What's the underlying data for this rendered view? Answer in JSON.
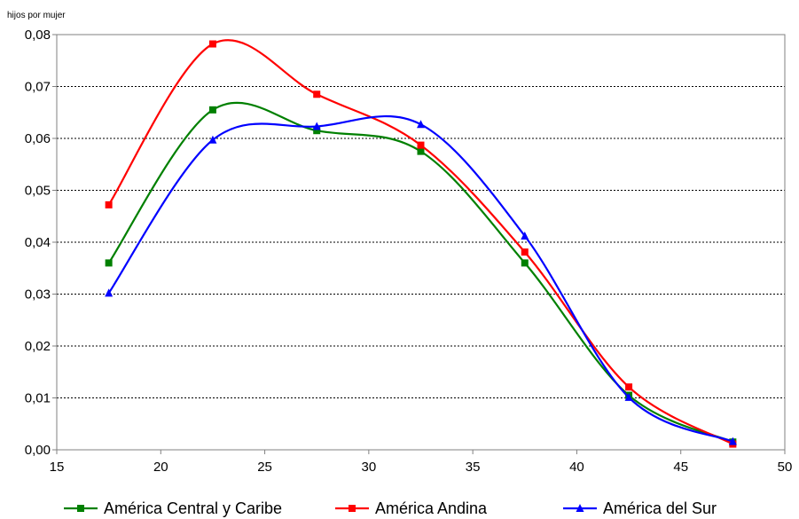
{
  "chart_data": {
    "type": "line",
    "title": "",
    "xlabel": "",
    "ylabel": "hijos por mujer",
    "xlim": [
      15,
      50
    ],
    "ylim": [
      0,
      0.08
    ],
    "x_ticks": [
      15,
      20,
      25,
      30,
      35,
      40,
      45,
      50
    ],
    "x_tick_labels": [
      "15",
      "20",
      "25",
      "30",
      "35",
      "40",
      "45",
      "50"
    ],
    "y_ticks": [
      0,
      0.01,
      0.02,
      0.03,
      0.04,
      0.05,
      0.06,
      0.07,
      0.08
    ],
    "y_tick_labels": [
      "0,00",
      "0,01",
      "0,02",
      "0,03",
      "0,04",
      "0,05",
      "0,06",
      "0,07",
      "0,08"
    ],
    "grid": true,
    "smooth": true,
    "legend_position": "bottom",
    "x": [
      17.5,
      22.5,
      27.5,
      32.5,
      37.5,
      42.5,
      47.5
    ],
    "series": [
      {
        "name": "América Central y Caribe",
        "color": "#008000",
        "marker": "square",
        "values": [
          0.036,
          0.0655,
          0.0615,
          0.0575,
          0.036,
          0.0105,
          0.0015
        ]
      },
      {
        "name": "América Andina",
        "color": "#ff0000",
        "marker": "square",
        "values": [
          0.0472,
          0.0782,
          0.0685,
          0.0587,
          0.0381,
          0.0121,
          0.0011
        ]
      },
      {
        "name": "América del Sur",
        "color": "#0000ff",
        "marker": "triangle",
        "values": [
          0.0302,
          0.0597,
          0.0623,
          0.0627,
          0.0412,
          0.0101,
          0.0016
        ]
      }
    ]
  }
}
